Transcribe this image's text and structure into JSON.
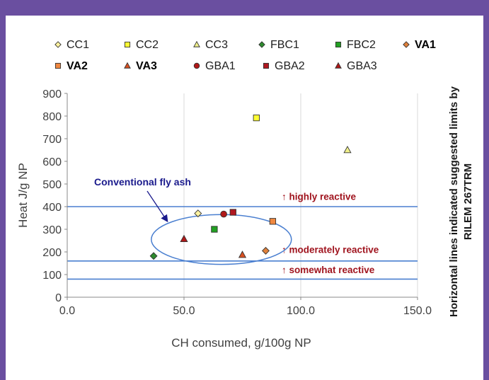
{
  "chart_data": {
    "type": "scatter",
    "xlabel": "CH consumed, g/100g NP",
    "ylabel": "Heat J/g NP",
    "right_label_lines": [
      "Horizontal lines indicated suggested limits by",
      "RILEM 267TRM"
    ],
    "xlim": [
      0,
      150
    ],
    "ylim": [
      0,
      900
    ],
    "x_ticks": [
      0,
      50,
      100,
      150
    ],
    "x_tick_labels": [
      "0.0",
      "50.0",
      "100.0",
      "150.0"
    ],
    "y_ticks": [
      0,
      100,
      200,
      300,
      400,
      500,
      600,
      700,
      800,
      900
    ],
    "y_tick_labels": [
      "0",
      "100",
      "200",
      "300",
      "400",
      "500",
      "600",
      "700",
      "800",
      "900"
    ],
    "grid": "vertical",
    "legend_position": "top",
    "series": [
      {
        "name": "CC1",
        "marker": "diamond",
        "color": "#fff3a0",
        "bold": false,
        "points": [
          [
            56,
            370
          ]
        ]
      },
      {
        "name": "CC2",
        "marker": "square",
        "color": "#ffff33",
        "bold": false,
        "points": [
          [
            81,
            792
          ]
        ]
      },
      {
        "name": "CC3",
        "marker": "triangle",
        "color": "#f0f08a",
        "bold": false,
        "points": [
          [
            120,
            650
          ]
        ]
      },
      {
        "name": "FBC1",
        "marker": "diamond",
        "color": "#2e8b2e",
        "bold": false,
        "points": [
          [
            37,
            182
          ]
        ]
      },
      {
        "name": "FBC2",
        "marker": "square",
        "color": "#22a022",
        "bold": false,
        "points": [
          [
            63,
            300
          ]
        ]
      },
      {
        "name": "VA1",
        "marker": "diamond",
        "color": "#e0803a",
        "bold": true,
        "points": [
          [
            85,
            205
          ]
        ]
      },
      {
        "name": "VA2",
        "marker": "square",
        "color": "#f08840",
        "bold": true,
        "points": [
          [
            88,
            335
          ]
        ]
      },
      {
        "name": "VA3",
        "marker": "triangle",
        "color": "#d85020",
        "bold": true,
        "points": [
          [
            75,
            187
          ]
        ]
      },
      {
        "name": "GBA1",
        "marker": "circle",
        "color": "#b01818",
        "bold": false,
        "points": [
          [
            67,
            367
          ]
        ]
      },
      {
        "name": "GBA2",
        "marker": "square",
        "color": "#b01820",
        "bold": false,
        "points": [
          [
            71,
            375
          ]
        ]
      },
      {
        "name": "GBA3",
        "marker": "triangle",
        "color": "#b01818",
        "bold": false,
        "points": [
          [
            50,
            257
          ]
        ]
      }
    ],
    "reference_lines": [
      {
        "y": 400,
        "label": "highly reactive",
        "label_y": 430
      },
      {
        "y": 160,
        "label": "moderately reactive",
        "label_y": 195
      },
      {
        "y": 80,
        "label": "somewhat reactive",
        "label_y": 107
      }
    ],
    "annotation": {
      "text": "Conventional fly ash",
      "ellipse_center": [
        66,
        255
      ],
      "ellipse_radius_data": [
        30,
        110
      ]
    },
    "colors": {
      "frame": "#6a4fa0",
      "reference_line": "#4a7fd0",
      "ellipse": "#4a7fd0",
      "annotation_text": "#1a1a8c",
      "reference_label": "#a0141e",
      "axis": "#888888",
      "grid": "#d9d9d9"
    }
  }
}
